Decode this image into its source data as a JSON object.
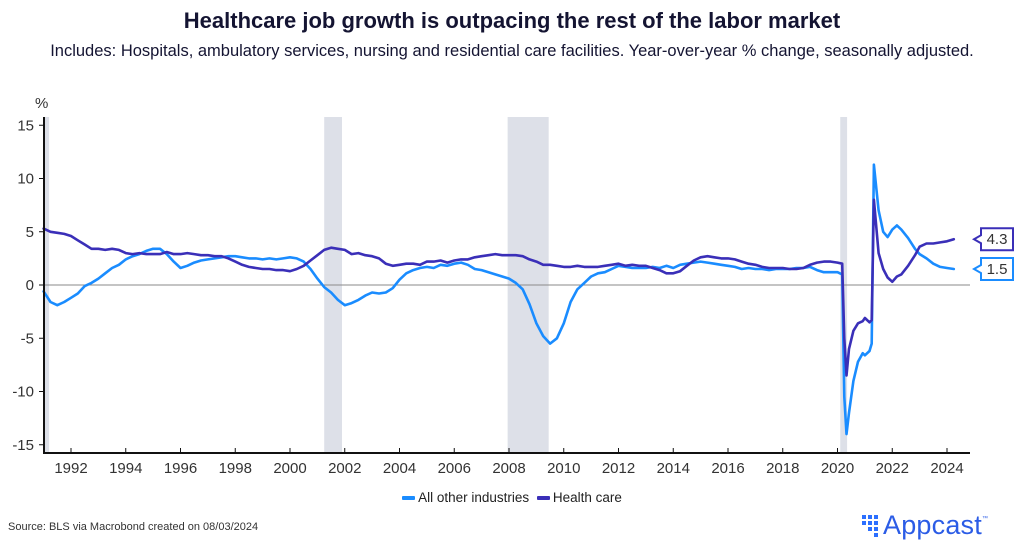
{
  "title": "Healthcare job growth is outpacing the rest of the labor market",
  "subtitle": "Includes: Hospitals, ambulatory services, nursing and residential care facilities. Year-over-year % change, seasonally adjusted.",
  "source": "Source: BLS via Macrobond created on 08/03/2024",
  "brand": {
    "name": "Appcast",
    "tm": "™",
    "color": "#2b5ce6"
  },
  "chart_data": {
    "type": "line",
    "title": "Healthcare job growth is outpacing the rest of the labor market",
    "ylabel": "%",
    "xlabel": "",
    "ylim": [
      -16,
      16
    ],
    "xlim": [
      1991.0,
      2025.0
    ],
    "yticks": [
      15,
      10,
      5,
      0,
      -5,
      -10,
      -15
    ],
    "ytick_labels": [
      "15",
      "10",
      "5",
      "0",
      "-5",
      "-10",
      "-15"
    ],
    "xticks": [
      1992,
      1994,
      1996,
      1998,
      2000,
      2002,
      2004,
      2006,
      2008,
      2010,
      2012,
      2014,
      2016,
      2018,
      2020,
      2022,
      2024
    ],
    "xtick_labels": [
      "1992",
      "1994",
      "1996",
      "1998",
      "2000",
      "2002",
      "2004",
      "2006",
      "2008",
      "2010",
      "2012",
      "2014",
      "2016",
      "2018",
      "2020",
      "2022",
      "2024"
    ],
    "grid": false,
    "zero_line": true,
    "legend_position": "bottom",
    "recessions": [
      [
        1991.0,
        1991.2
      ],
      [
        2001.25,
        2001.9
      ],
      [
        2007.95,
        2009.45
      ],
      [
        2020.1,
        2020.35
      ]
    ],
    "series": [
      {
        "name": "All other industries",
        "color": "#1a8cff",
        "end_label": "1.5",
        "points": [
          [
            1991.0,
            -0.6
          ],
          [
            1991.25,
            -1.6
          ],
          [
            1991.5,
            -1.9
          ],
          [
            1991.75,
            -1.6
          ],
          [
            1992.0,
            -1.2
          ],
          [
            1992.25,
            -0.8
          ],
          [
            1992.5,
            -0.1
          ],
          [
            1992.75,
            0.2
          ],
          [
            1993.0,
            0.6
          ],
          [
            1993.25,
            1.1
          ],
          [
            1993.5,
            1.6
          ],
          [
            1993.75,
            1.9
          ],
          [
            1994.0,
            2.4
          ],
          [
            1994.25,
            2.7
          ],
          [
            1994.5,
            2.9
          ],
          [
            1994.75,
            3.2
          ],
          [
            1995.0,
            3.4
          ],
          [
            1995.25,
            3.4
          ],
          [
            1995.5,
            2.9
          ],
          [
            1995.75,
            2.2
          ],
          [
            1996.0,
            1.6
          ],
          [
            1996.25,
            1.8
          ],
          [
            1996.5,
            2.1
          ],
          [
            1996.75,
            2.3
          ],
          [
            1997.0,
            2.4
          ],
          [
            1997.25,
            2.5
          ],
          [
            1997.5,
            2.6
          ],
          [
            1997.75,
            2.7
          ],
          [
            1998.0,
            2.7
          ],
          [
            1998.25,
            2.6
          ],
          [
            1998.5,
            2.5
          ],
          [
            1998.75,
            2.5
          ],
          [
            1999.0,
            2.4
          ],
          [
            1999.25,
            2.5
          ],
          [
            1999.5,
            2.4
          ],
          [
            1999.75,
            2.5
          ],
          [
            2000.0,
            2.6
          ],
          [
            2000.25,
            2.5
          ],
          [
            2000.5,
            2.2
          ],
          [
            2000.75,
            1.5
          ],
          [
            2001.0,
            0.6
          ],
          [
            2001.25,
            -0.2
          ],
          [
            2001.5,
            -0.7
          ],
          [
            2001.75,
            -1.4
          ],
          [
            2002.0,
            -1.9
          ],
          [
            2002.25,
            -1.7
          ],
          [
            2002.5,
            -1.4
          ],
          [
            2002.75,
            -1.0
          ],
          [
            2003.0,
            -0.7
          ],
          [
            2003.25,
            -0.8
          ],
          [
            2003.5,
            -0.7
          ],
          [
            2003.75,
            -0.3
          ],
          [
            2004.0,
            0.5
          ],
          [
            2004.25,
            1.1
          ],
          [
            2004.5,
            1.4
          ],
          [
            2004.75,
            1.6
          ],
          [
            2005.0,
            1.7
          ],
          [
            2005.25,
            1.6
          ],
          [
            2005.5,
            1.9
          ],
          [
            2005.75,
            1.8
          ],
          [
            2006.0,
            2.0
          ],
          [
            2006.25,
            2.1
          ],
          [
            2006.5,
            1.9
          ],
          [
            2006.75,
            1.5
          ],
          [
            2007.0,
            1.4
          ],
          [
            2007.25,
            1.2
          ],
          [
            2007.5,
            1.0
          ],
          [
            2007.75,
            0.8
          ],
          [
            2008.0,
            0.6
          ],
          [
            2008.25,
            0.2
          ],
          [
            2008.5,
            -0.4
          ],
          [
            2008.75,
            -1.8
          ],
          [
            2009.0,
            -3.6
          ],
          [
            2009.25,
            -4.8
          ],
          [
            2009.5,
            -5.5
          ],
          [
            2009.75,
            -5.0
          ],
          [
            2010.0,
            -3.6
          ],
          [
            2010.25,
            -1.6
          ],
          [
            2010.5,
            -0.4
          ],
          [
            2010.75,
            0.2
          ],
          [
            2011.0,
            0.8
          ],
          [
            2011.25,
            1.1
          ],
          [
            2011.5,
            1.2
          ],
          [
            2011.75,
            1.5
          ],
          [
            2012.0,
            1.8
          ],
          [
            2012.25,
            1.7
          ],
          [
            2012.5,
            1.6
          ],
          [
            2012.75,
            1.6
          ],
          [
            2013.0,
            1.6
          ],
          [
            2013.25,
            1.7
          ],
          [
            2013.5,
            1.6
          ],
          [
            2013.75,
            1.8
          ],
          [
            2014.0,
            1.6
          ],
          [
            2014.25,
            1.9
          ],
          [
            2014.5,
            2.0
          ],
          [
            2014.75,
            2.1
          ],
          [
            2015.0,
            2.2
          ],
          [
            2015.25,
            2.1
          ],
          [
            2015.5,
            2.0
          ],
          [
            2015.75,
            1.9
          ],
          [
            2016.0,
            1.8
          ],
          [
            2016.25,
            1.7
          ],
          [
            2016.5,
            1.5
          ],
          [
            2016.75,
            1.6
          ],
          [
            2017.0,
            1.5
          ],
          [
            2017.25,
            1.5
          ],
          [
            2017.5,
            1.4
          ],
          [
            2017.75,
            1.5
          ],
          [
            2018.0,
            1.5
          ],
          [
            2018.25,
            1.5
          ],
          [
            2018.5,
            1.6
          ],
          [
            2018.75,
            1.6
          ],
          [
            2019.0,
            1.7
          ],
          [
            2019.25,
            1.4
          ],
          [
            2019.5,
            1.2
          ],
          [
            2019.75,
            1.2
          ],
          [
            2020.0,
            1.2
          ],
          [
            2020.17,
            1.0
          ],
          [
            2020.25,
            -10.5
          ],
          [
            2020.33,
            -14.0
          ],
          [
            2020.42,
            -12.0
          ],
          [
            2020.58,
            -9.0
          ],
          [
            2020.75,
            -7.2
          ],
          [
            2020.92,
            -6.4
          ],
          [
            2021.0,
            -6.6
          ],
          [
            2021.17,
            -6.2
          ],
          [
            2021.25,
            -5.5
          ],
          [
            2021.33,
            11.3
          ],
          [
            2021.5,
            7.0
          ],
          [
            2021.67,
            5.0
          ],
          [
            2021.83,
            4.5
          ],
          [
            2022.0,
            5.2
          ],
          [
            2022.17,
            5.6
          ],
          [
            2022.33,
            5.2
          ],
          [
            2022.58,
            4.4
          ],
          [
            2022.83,
            3.4
          ],
          [
            2023.0,
            2.9
          ],
          [
            2023.25,
            2.5
          ],
          [
            2023.5,
            2.0
          ],
          [
            2023.75,
            1.7
          ],
          [
            2024.0,
            1.6
          ],
          [
            2024.25,
            1.5
          ]
        ]
      },
      {
        "name": "Health care",
        "color": "#3a2fb8",
        "end_label": "4.3",
        "points": [
          [
            1991.0,
            5.3
          ],
          [
            1991.25,
            5.0
          ],
          [
            1991.5,
            4.9
          ],
          [
            1991.75,
            4.8
          ],
          [
            1992.0,
            4.6
          ],
          [
            1992.25,
            4.2
          ],
          [
            1992.5,
            3.8
          ],
          [
            1992.75,
            3.4
          ],
          [
            1993.0,
            3.4
          ],
          [
            1993.25,
            3.3
          ],
          [
            1993.5,
            3.4
          ],
          [
            1993.75,
            3.3
          ],
          [
            1994.0,
            3.0
          ],
          [
            1994.25,
            2.9
          ],
          [
            1994.5,
            3.0
          ],
          [
            1994.75,
            2.9
          ],
          [
            1995.0,
            2.9
          ],
          [
            1995.25,
            2.9
          ],
          [
            1995.5,
            3.1
          ],
          [
            1995.75,
            2.9
          ],
          [
            1996.0,
            2.9
          ],
          [
            1996.25,
            3.0
          ],
          [
            1996.5,
            2.9
          ],
          [
            1996.75,
            2.8
          ],
          [
            1997.0,
            2.8
          ],
          [
            1997.25,
            2.7
          ],
          [
            1997.5,
            2.7
          ],
          [
            1997.75,
            2.5
          ],
          [
            1998.0,
            2.2
          ],
          [
            1998.25,
            1.9
          ],
          [
            1998.5,
            1.7
          ],
          [
            1998.75,
            1.6
          ],
          [
            1999.0,
            1.5
          ],
          [
            1999.25,
            1.5
          ],
          [
            1999.5,
            1.4
          ],
          [
            1999.75,
            1.4
          ],
          [
            2000.0,
            1.3
          ],
          [
            2000.25,
            1.5
          ],
          [
            2000.5,
            1.8
          ],
          [
            2000.75,
            2.3
          ],
          [
            2001.0,
            2.8
          ],
          [
            2001.25,
            3.3
          ],
          [
            2001.5,
            3.5
          ],
          [
            2001.75,
            3.4
          ],
          [
            2002.0,
            3.3
          ],
          [
            2002.25,
            2.9
          ],
          [
            2002.5,
            3.0
          ],
          [
            2002.75,
            2.8
          ],
          [
            2003.0,
            2.7
          ],
          [
            2003.25,
            2.5
          ],
          [
            2003.5,
            2.0
          ],
          [
            2003.75,
            1.8
          ],
          [
            2004.0,
            1.9
          ],
          [
            2004.25,
            2.0
          ],
          [
            2004.5,
            2.0
          ],
          [
            2004.75,
            1.9
          ],
          [
            2005.0,
            2.2
          ],
          [
            2005.25,
            2.2
          ],
          [
            2005.5,
            2.3
          ],
          [
            2005.75,
            2.1
          ],
          [
            2006.0,
            2.3
          ],
          [
            2006.25,
            2.4
          ],
          [
            2006.5,
            2.4
          ],
          [
            2006.75,
            2.6
          ],
          [
            2007.0,
            2.7
          ],
          [
            2007.25,
            2.8
          ],
          [
            2007.5,
            2.9
          ],
          [
            2007.75,
            2.8
          ],
          [
            2008.0,
            2.8
          ],
          [
            2008.25,
            2.8
          ],
          [
            2008.5,
            2.7
          ],
          [
            2008.75,
            2.4
          ],
          [
            2009.0,
            2.2
          ],
          [
            2009.25,
            1.9
          ],
          [
            2009.5,
            1.9
          ],
          [
            2009.75,
            1.8
          ],
          [
            2010.0,
            1.7
          ],
          [
            2010.25,
            1.7
          ],
          [
            2010.5,
            1.8
          ],
          [
            2010.75,
            1.7
          ],
          [
            2011.0,
            1.7
          ],
          [
            2011.25,
            1.7
          ],
          [
            2011.5,
            1.8
          ],
          [
            2011.75,
            1.9
          ],
          [
            2012.0,
            2.0
          ],
          [
            2012.25,
            1.8
          ],
          [
            2012.5,
            1.9
          ],
          [
            2012.75,
            1.8
          ],
          [
            2013.0,
            1.8
          ],
          [
            2013.25,
            1.6
          ],
          [
            2013.5,
            1.4
          ],
          [
            2013.75,
            1.1
          ],
          [
            2014.0,
            1.1
          ],
          [
            2014.25,
            1.3
          ],
          [
            2014.5,
            1.8
          ],
          [
            2014.75,
            2.3
          ],
          [
            2015.0,
            2.6
          ],
          [
            2015.25,
            2.7
          ],
          [
            2015.5,
            2.6
          ],
          [
            2015.75,
            2.5
          ],
          [
            2016.0,
            2.5
          ],
          [
            2016.25,
            2.4
          ],
          [
            2016.5,
            2.2
          ],
          [
            2016.75,
            2.0
          ],
          [
            2017.0,
            1.9
          ],
          [
            2017.25,
            1.7
          ],
          [
            2017.5,
            1.6
          ],
          [
            2017.75,
            1.6
          ],
          [
            2018.0,
            1.6
          ],
          [
            2018.25,
            1.5
          ],
          [
            2018.5,
            1.5
          ],
          [
            2018.75,
            1.6
          ],
          [
            2019.0,
            1.9
          ],
          [
            2019.25,
            2.1
          ],
          [
            2019.5,
            2.2
          ],
          [
            2019.75,
            2.2
          ],
          [
            2020.0,
            2.1
          ],
          [
            2020.17,
            2.0
          ],
          [
            2020.25,
            -5.0
          ],
          [
            2020.33,
            -8.5
          ],
          [
            2020.42,
            -6.0
          ],
          [
            2020.58,
            -4.3
          ],
          [
            2020.75,
            -3.6
          ],
          [
            2020.92,
            -3.4
          ],
          [
            2021.0,
            -3.1
          ],
          [
            2021.17,
            -3.5
          ],
          [
            2021.25,
            -3.3
          ],
          [
            2021.33,
            8.0
          ],
          [
            2021.5,
            3.0
          ],
          [
            2021.67,
            1.5
          ],
          [
            2021.83,
            0.7
          ],
          [
            2022.0,
            0.3
          ],
          [
            2022.17,
            0.8
          ],
          [
            2022.33,
            1.0
          ],
          [
            2022.58,
            1.8
          ],
          [
            2022.83,
            2.8
          ],
          [
            2023.0,
            3.6
          ],
          [
            2023.25,
            3.9
          ],
          [
            2023.5,
            3.9
          ],
          [
            2023.75,
            4.0
          ],
          [
            2024.0,
            4.1
          ],
          [
            2024.25,
            4.3
          ]
        ]
      }
    ]
  }
}
